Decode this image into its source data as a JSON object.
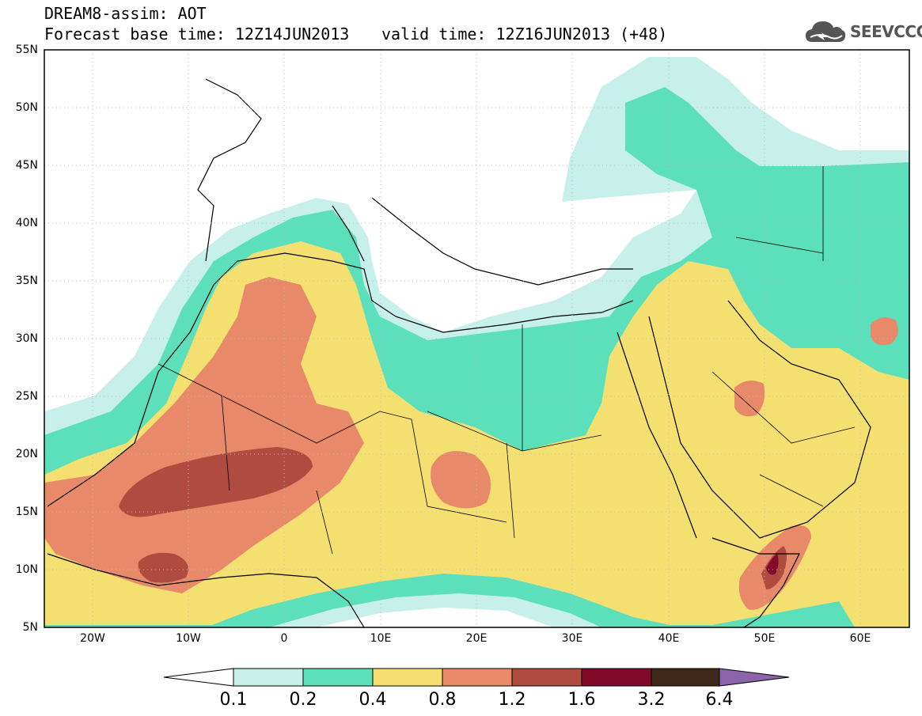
{
  "header": {
    "title": "DREAM8-assim: AOT",
    "base_time": "Forecast base time: 12Z14JUN2013",
    "valid_time": "valid time: 12Z16JUN2013 (+48)"
  },
  "logo": {
    "icon": "cloud-icon",
    "text": "SEEVCCC"
  },
  "map": {
    "lat_labels": [
      "55N",
      "50N",
      "45N",
      "40N",
      "35N",
      "30N",
      "25N",
      "20N",
      "15N",
      "10N",
      "5N"
    ],
    "lon_labels": [
      "20W",
      "10W",
      "0",
      "10E",
      "20E",
      "30E",
      "40E",
      "50E",
      "60E"
    ],
    "lat_range": [
      5,
      55
    ],
    "lon_range": [
      -25,
      65
    ]
  },
  "colorbar": {
    "labels": [
      "0.1",
      "0.2",
      "0.4",
      "0.8",
      "1.2",
      "1.6",
      "3.2",
      "6.4"
    ],
    "colors": [
      "#ffffff",
      "#c8f0ea",
      "#5ce0bc",
      "#f4e070",
      "#e88a6a",
      "#b04b40",
      "#820a2a",
      "#40281a",
      "#8c64aa"
    ]
  }
}
